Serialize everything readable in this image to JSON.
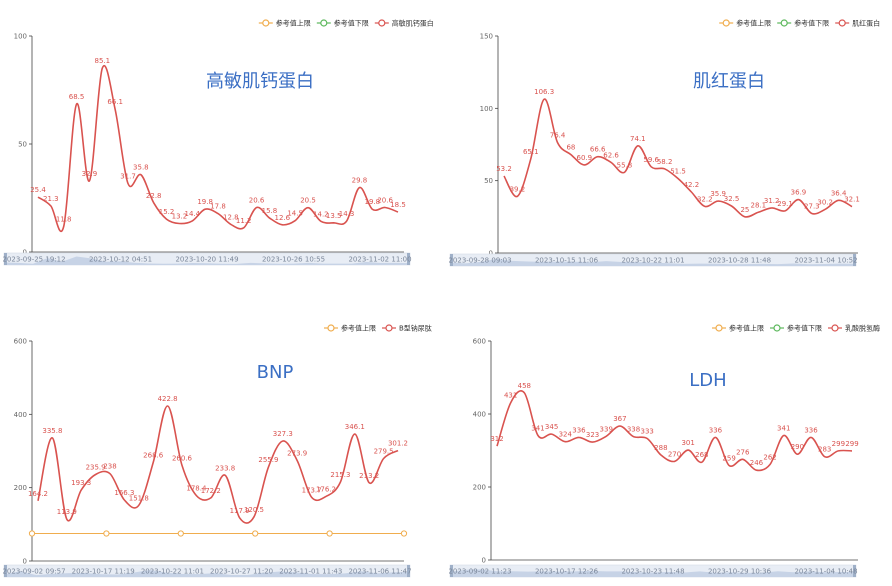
{
  "colors": {
    "upper": "#f0ad4e",
    "lower": "#5cb85c",
    "series": "#d9534f",
    "title": "#3b6fc4",
    "axis": "#666666"
  },
  "chart_data": [
    {
      "type": "line",
      "title": "高敏肌钙蛋白",
      "legend": [
        "参考值上限",
        "参考值下限",
        "高敏肌钙蛋白"
      ],
      "legend_placement": "top-right",
      "ylim": [
        0,
        100
      ],
      "yticks": [
        "0",
        "50",
        "100"
      ],
      "grid": false,
      "slider_labels": [
        "2023-09-25 19:12",
        "2023-10-12 04:51",
        "2023-10-20 11:49",
        "2023-10-26 10:55",
        "2023-11-02 11:00"
      ],
      "series": [
        {
          "name": "高敏肌钙蛋白",
          "values": [
            25.4,
            21.3,
            11.8,
            68.5,
            32.9,
            85.1,
            66.1,
            31.7,
            35.8,
            22.8,
            15.2,
            13.2,
            14.4,
            19.8,
            17.8,
            12.8,
            11.2,
            20.6,
            15.8,
            12.6,
            14.5,
            20.5,
            14.2,
            13.5,
            14.3,
            29.8,
            19.8,
            20.6,
            18.5
          ],
          "labels": [
            "25.4",
            "21.3",
            "11.8",
            "68.5",
            "32.9",
            "85.1",
            "66.1",
            "31.7",
            "35.8",
            "22.8",
            "15.2",
            "13.2",
            "14.4",
            "19.8",
            "17.8",
            "12.8",
            "11.2",
            "20.6",
            "15.8",
            "12.6",
            "14.5",
            "20.5",
            "14.2",
            "13.5",
            "14.3",
            "29.8",
            "19.8",
            "20.6",
            "18.5"
          ]
        }
      ]
    },
    {
      "type": "line",
      "title": "肌红蛋白",
      "legend": [
        "参考值上限",
        "参考值下限",
        "肌红蛋白"
      ],
      "legend_placement": "top-right",
      "ylim": [
        0,
        150
      ],
      "yticks": [
        "0",
        "50",
        "100",
        "150"
      ],
      "grid": false,
      "slider_labels": [
        "2023-09-28 09:03",
        "2023-10-15 11:06",
        "2023-10-22 11:01",
        "2023-10-28 11:48",
        "2023-11-04 10:52"
      ],
      "series": [
        {
          "name": "肌红蛋白",
          "values": [
            53.2,
            39.2,
            65.1,
            106.3,
            76.4,
            68,
            60.9,
            66.6,
            62.6,
            55.8,
            74.1,
            59.6,
            58.2,
            51.5,
            42.2,
            32.2,
            35.9,
            32.5,
            25,
            28.1,
            31.2,
            29.1,
            36.9,
            27.3,
            30.2,
            36.4,
            32.1
          ],
          "labels": [
            "53.2",
            "39.2",
            "65.1",
            "106.3",
            "76.4",
            "68",
            "60.9",
            "66.6",
            "62.6",
            "55.8",
            "74.1",
            "59.6",
            "58.2",
            "51.5",
            "42.2",
            "32.2",
            "35.9",
            "32.5",
            "25",
            "28.1",
            "31.2",
            "29.1",
            "36.9",
            "27.3",
            "30.2",
            "36.4",
            "32.1"
          ]
        }
      ]
    },
    {
      "type": "line",
      "title": "BNP",
      "legend": [
        "参考值上限",
        "B型钠尿肽"
      ],
      "legend_placement": "top-right",
      "ylim": [
        0,
        600
      ],
      "yticks": [
        "0",
        "200",
        "400",
        "600"
      ],
      "grid": false,
      "slider_labels": [
        "2023-09-02 09:57",
        "2023-10-17 11:19",
        "2023-10-22 11:01",
        "2023-10-27 11:20",
        "2023-11-01 11:43",
        "2023-11-06 11:47"
      ],
      "upper_ref": 75,
      "series": [
        {
          "name": "B型钠尿肽",
          "values": [
            164.2,
            335.8,
            113.9,
            193.3,
            235.9,
            238,
            166.3,
            151.8,
            268.6,
            422.8,
            260.6,
            178.4,
            172.2,
            233.8,
            117.9,
            120.5,
            255.9,
            327.3,
            273.9,
            173.7,
            176.2,
            215.3,
            346.1,
            213.2,
            279.5,
            301.2
          ],
          "labels": [
            "164.2",
            "335.8",
            "113.9",
            "193.3",
            "235.9",
            "238",
            "166.3",
            "151.8",
            "268.6",
            "422.8",
            "260.6",
            "178.4",
            "172.2",
            "233.8",
            "117.9",
            "120.5",
            "255.9",
            "327.3",
            "273.9",
            "173.7",
            "176.2",
            "215.3",
            "346.1",
            "213.2",
            "279.5",
            "301.2"
          ]
        }
      ]
    },
    {
      "type": "line",
      "title": "LDH",
      "legend": [
        "参考值上限",
        "参考值下限",
        "乳酸脱氢酶"
      ],
      "legend_placement": "top-right",
      "ylim": [
        0,
        600
      ],
      "yticks": [
        "0",
        "200",
        "400",
        "600"
      ],
      "grid": false,
      "slider_labels": [
        "2023-09-02 11:23",
        "2023-10-17 12:26",
        "2023-10-23 11:48",
        "2023-10-29 10:36",
        "2023-11-04 10:48"
      ],
      "series": [
        {
          "name": "乳酸脱氢酶",
          "values": [
            312,
            431,
            458,
            341,
            345,
            324,
            336,
            323,
            339,
            367,
            338,
            333,
            288,
            270,
            301,
            268,
            336,
            259,
            276,
            246,
            262,
            341,
            290,
            336,
            283,
            299,
            299
          ],
          "labels": [
            "312",
            "431",
            "458",
            "341",
            "345",
            "324",
            "336",
            "323",
            "339",
            "367",
            "338",
            "333",
            "288",
            "270",
            "301",
            "268",
            "336",
            "259",
            "276",
            "246",
            "262",
            "341",
            "290",
            "336",
            "283",
            "299",
            "299"
          ]
        }
      ]
    }
  ]
}
